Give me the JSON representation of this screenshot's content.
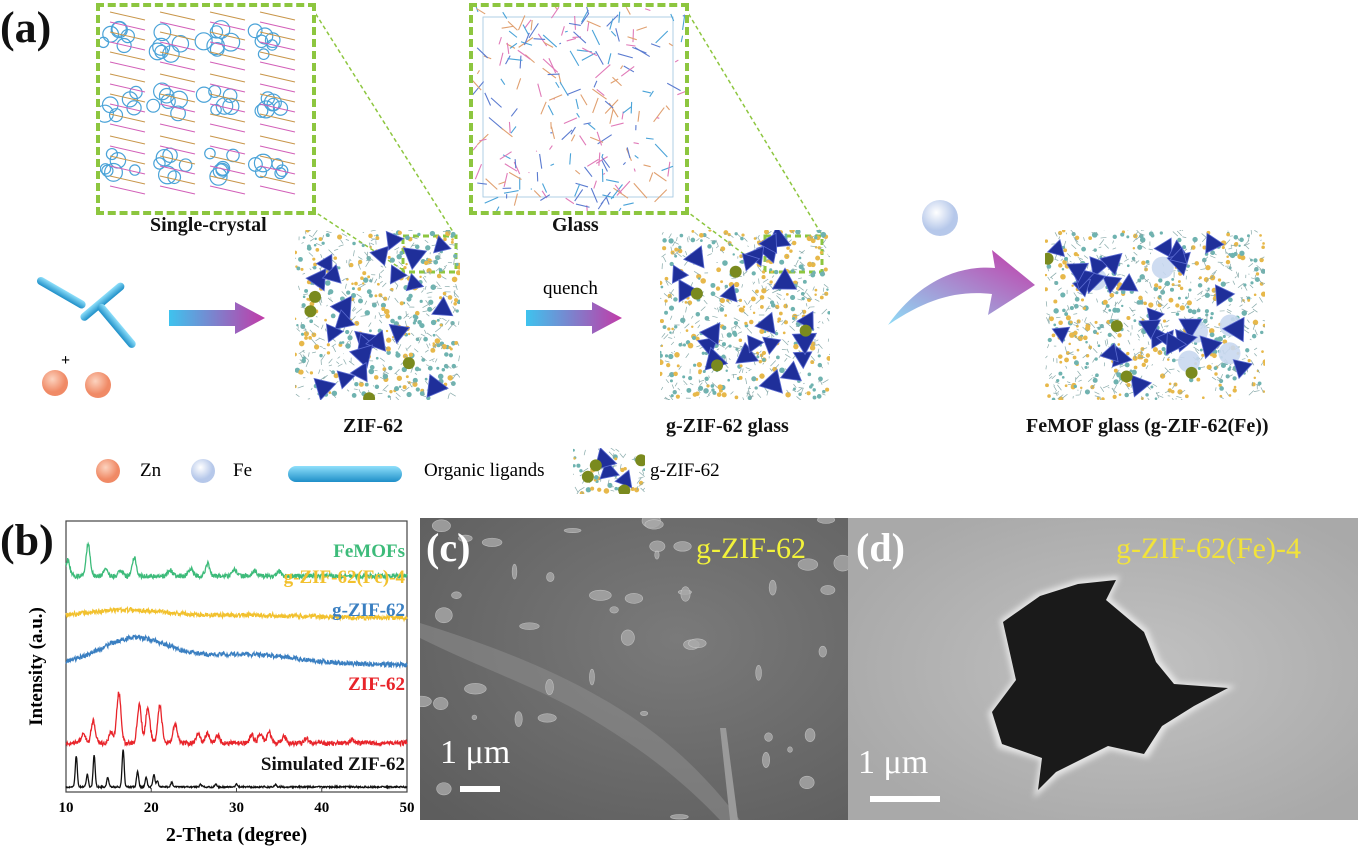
{
  "panel_a": {
    "label": "(a)",
    "inset_crystal_label": "Single-crystal",
    "inset_glass_label": "Glass",
    "structure_zif62_label": "ZIF-62",
    "structure_glass_label": "g-ZIF-62 glass",
    "structure_femof_label": "FeMOF glass (g-ZIF-62(Fe))",
    "quench_label": "quench",
    "plus_sign": "+",
    "legend": {
      "zn": "Zn",
      "fe": "Fe",
      "ligands": "Organic ligands",
      "gzif": "g-ZIF-62"
    },
    "colors": {
      "zn": "#f4a582",
      "fe": "#c9d8ef",
      "ligand": "#3bb3e0",
      "tetrahedra": "#1f2f9a",
      "inset_border": "#8dc63f",
      "arrow_start": "#3ec3ee",
      "arrow_end": "#c23aa8"
    }
  },
  "panel_b": {
    "label": "(b)",
    "chart_data": {
      "type": "line",
      "xlabel": "2-Theta (degree)",
      "ylabel": "Intensity (a.u.)",
      "xlim": [
        10,
        50
      ],
      "xticks": [
        "10",
        "20",
        "30",
        "40",
        "50"
      ],
      "yticks_shown": false,
      "grid": false,
      "legend": "inline labels at right end of each trace",
      "series": [
        {
          "name": "FeMOFs",
          "color": "#3dbb7a",
          "offset": 4,
          "peaks": [
            [
              10.2,
              0.5
            ],
            [
              12.6,
              1.0
            ],
            [
              14.6,
              0.2
            ],
            [
              16.4,
              0.2
            ],
            [
              18.0,
              0.6
            ],
            [
              22.2,
              0.2
            ],
            [
              24.6,
              0.25
            ],
            [
              26.6,
              0.4
            ],
            [
              29.8,
              0.2
            ],
            [
              32.2,
              0.15
            ],
            [
              35.0,
              0.15
            ]
          ]
        },
        {
          "name": "g-ZIF-62(Fe)-4",
          "color": "#f2c12e",
          "offset": 3.2,
          "broad": [
            [
              17,
              0.15,
              5
            ],
            [
              32,
              0.05,
              6
            ]
          ]
        },
        {
          "name": "g-ZIF-62",
          "color": "#3a7fc1",
          "offset": 2.3,
          "broad": [
            [
              18,
              0.5,
              4
            ],
            [
              31,
              0.2,
              6
            ]
          ]
        },
        {
          "name": "ZIF-62",
          "color": "#e8242a",
          "offset": 0.8,
          "peaks": [
            [
              12.0,
              0.3
            ],
            [
              13.2,
              0.7
            ],
            [
              15.3,
              0.35
            ],
            [
              16.2,
              1.6
            ],
            [
              18.6,
              1.2
            ],
            [
              19.6,
              1.15
            ],
            [
              21.0,
              1.2
            ],
            [
              22.8,
              0.6
            ],
            [
              25.5,
              0.3
            ],
            [
              26.6,
              0.3
            ],
            [
              27.8,
              0.25
            ],
            [
              31.8,
              0.25
            ],
            [
              32.8,
              0.3
            ],
            [
              33.8,
              0.35
            ],
            [
              35.6,
              0.2
            ],
            [
              38.2,
              0.15
            ],
            [
              43.5,
              0.1
            ]
          ]
        },
        {
          "name": "Simulated ZIF-62",
          "color": "#111111",
          "offset": 0,
          "peaks": [
            [
              11.2,
              1.0
            ],
            [
              12.5,
              0.4
            ],
            [
              13.3,
              1.0
            ],
            [
              14.9,
              0.3
            ],
            [
              16.7,
              1.2
            ],
            [
              18.4,
              0.5
            ],
            [
              19.4,
              0.3
            ],
            [
              20.3,
              0.4
            ],
            [
              20.7,
              0.2
            ],
            [
              22.4,
              0.15
            ],
            [
              25.8,
              0.08
            ],
            [
              27.6,
              0.08
            ],
            [
              30.0,
              0.08
            ],
            [
              34.6,
              0.08
            ]
          ]
        }
      ]
    }
  },
  "panel_c": {
    "label": "(c)",
    "sample_label": "g-ZIF-62",
    "scale_bar_label": "1 μm"
  },
  "panel_d": {
    "label": "(d)",
    "sample_label": "g-ZIF-62(Fe)-4",
    "scale_bar_label": "1 μm"
  }
}
